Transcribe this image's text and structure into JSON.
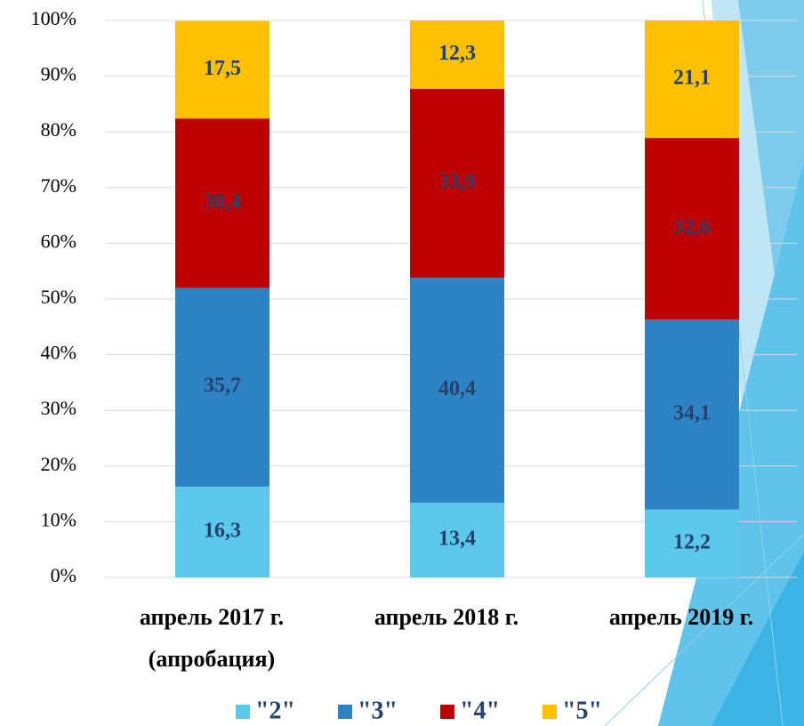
{
  "chart_data": {
    "type": "stacked_bar",
    "categories": [
      "апрель 2017 г. (апробация)",
      "апрель 2018 г.",
      "апрель 2019 г."
    ],
    "series": [
      {
        "name": "\"2\"",
        "color": "#5bc8ec",
        "values": [
          16.3,
          13.4,
          12.2
        ],
        "value_labels": [
          "16,3",
          "13,4",
          "12,2"
        ]
      },
      {
        "name": "\"3\"",
        "color": "#2e83c5",
        "values": [
          35.7,
          40.4,
          34.1
        ],
        "value_labels": [
          "35,7",
          "40,4",
          "34,1"
        ]
      },
      {
        "name": "\"4\"",
        "color": "#c00000",
        "values": [
          30.4,
          33.9,
          32.6
        ],
        "value_labels": [
          "30,4",
          "33,9",
          "32,6"
        ]
      },
      {
        "name": "\"5\"",
        "color": "#ffc000",
        "values": [
          17.5,
          12.3,
          21.1
        ],
        "value_labels": [
          "17,5",
          "12,3",
          "21,1"
        ]
      }
    ],
    "ylim": [
      0,
      100
    ],
    "yticks": [
      {
        "value": 0,
        "label": "0%"
      },
      {
        "value": 10,
        "label": "10%"
      },
      {
        "value": 20,
        "label": "20%"
      },
      {
        "value": 30,
        "label": "30%"
      },
      {
        "value": 40,
        "label": "40%"
      },
      {
        "value": 50,
        "label": "50%"
      },
      {
        "value": 60,
        "label": "60%"
      },
      {
        "value": 70,
        "label": "70%"
      },
      {
        "value": 80,
        "label": "80%"
      },
      {
        "value": 90,
        "label": "90%"
      },
      {
        "value": 100,
        "label": "100%"
      }
    ],
    "grid": true,
    "legend": "bottom"
  }
}
